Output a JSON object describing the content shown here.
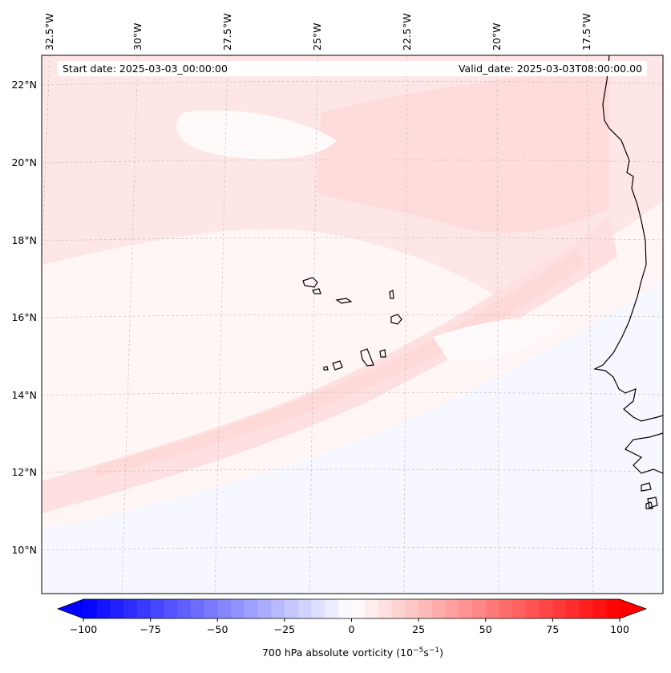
{
  "map": {
    "start_date": "Start date: 2025-03-03_00:00:00",
    "valid_date": "Valid_date: 2025-03-03T08:00:00.00",
    "lon_labels": [
      "32.5°W",
      "30°W",
      "27.5°W",
      "25°W",
      "22.5°W",
      "20°W",
      "17.5°W"
    ],
    "lat_labels": [
      "22°N",
      "20°N",
      "18°N",
      "16°N",
      "14°N",
      "12°N",
      "10°N"
    ],
    "gridlines": true
  },
  "colorbar": {
    "label_prefix": "700 hPa absolute vorticity (10",
    "label_exp1": "−5",
    "label_mid": "s",
    "label_exp2": "−1",
    "label_suffix": ")",
    "ticks": [
      "−100",
      "−75",
      "−50",
      "−25",
      "0",
      "25",
      "50",
      "75",
      "100"
    ],
    "min": -100,
    "max": 100,
    "levels": 40,
    "colormap": "bwr",
    "extend": "both"
  },
  "colors": {
    "background_field": "#fff6f5",
    "positive_weak": "#ffe3e3",
    "positive_mid": "#ffd6d6",
    "negative_weak": "#f6f7ff",
    "coastline": "#000000"
  }
}
